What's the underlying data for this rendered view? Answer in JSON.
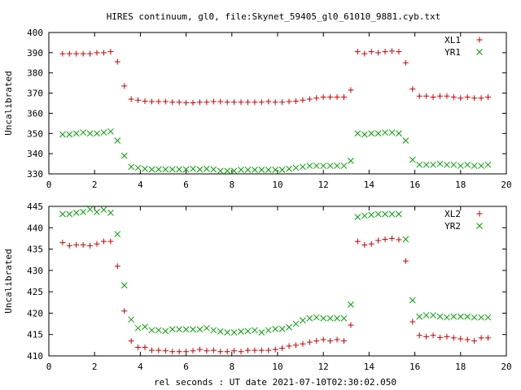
{
  "title": "HIRES continuum, gl0, file:Skynet_59405_gl0_61010_9881.cyb.txt",
  "xlabel": "rel seconds : UT date 2021-07-10T02:30:02.050",
  "colors": {
    "red": "#cc0000",
    "green": "#00a000",
    "axes": "#000000"
  },
  "chart_data": [
    {
      "type": "scatter",
      "ylabel": "Uncalibrated",
      "xlim": [
        0,
        20
      ],
      "ylim": [
        330,
        400
      ],
      "xticks": [
        "0",
        "2",
        "4",
        "6",
        "8",
        "10",
        "12",
        "14",
        "16",
        "18",
        "20"
      ],
      "yticks": [
        "330",
        "340",
        "350",
        "360",
        "370",
        "380",
        "390",
        "400"
      ],
      "legend_position": "top-right",
      "x": [
        0.6,
        0.9,
        1.2,
        1.5,
        1.8,
        2.1,
        2.4,
        2.7,
        3.0,
        3.3,
        3.6,
        3.9,
        4.2,
        4.5,
        4.8,
        5.1,
        5.4,
        5.7,
        6.0,
        6.3,
        6.6,
        6.9,
        7.2,
        7.5,
        7.8,
        8.1,
        8.4,
        8.7,
        9.0,
        9.3,
        9.6,
        9.9,
        10.2,
        10.5,
        10.8,
        11.1,
        11.4,
        11.7,
        12.0,
        12.3,
        12.6,
        12.9,
        13.2,
        13.5,
        13.8,
        14.1,
        14.4,
        14.7,
        15.0,
        15.3,
        15.6,
        15.9,
        16.2,
        16.5,
        16.8,
        17.1,
        17.4,
        17.7,
        18.0,
        18.3,
        18.6,
        18.9,
        19.2
      ],
      "series": [
        {
          "name": "XL1",
          "marker": "plus",
          "color": "#cc0000",
          "values": [
            389.5,
            389.5,
            389.5,
            389.5,
            389.5,
            390,
            390,
            390.5,
            385.5,
            373.5,
            367,
            366.5,
            366,
            365.8,
            365.8,
            365.8,
            365.5,
            365.5,
            365.2,
            365.2,
            365.5,
            365.5,
            365.8,
            365.8,
            365.5,
            365.5,
            365.5,
            365.5,
            365.5,
            365.5,
            365.8,
            365.5,
            365.5,
            365.8,
            366,
            366.5,
            367,
            367.5,
            368,
            368,
            368,
            368,
            371.5,
            390.5,
            389.5,
            390.5,
            390,
            390.5,
            390.8,
            390.5,
            385,
            372,
            368.5,
            368.5,
            368,
            368.5,
            368.5,
            368,
            367.5,
            368,
            367.5,
            367.5,
            368
          ]
        },
        {
          "name": "YR1",
          "marker": "cross",
          "color": "#00a000",
          "values": [
            349.5,
            349.5,
            350,
            350.5,
            350,
            350,
            350.5,
            351,
            346.5,
            339,
            333.5,
            333,
            332.5,
            332.2,
            332.2,
            332.2,
            332.2,
            332.2,
            332.2,
            332.5,
            332.2,
            332.5,
            332.2,
            331.5,
            331.5,
            331.5,
            332,
            332,
            332,
            332,
            332,
            332,
            332,
            332.5,
            333,
            333.5,
            334,
            334,
            334,
            334,
            334,
            334,
            336.5,
            350,
            349.5,
            350,
            350,
            350.5,
            350.5,
            350,
            346.5,
            337,
            334.5,
            334.5,
            334.5,
            335,
            334.5,
            334.5,
            334,
            334.5,
            334,
            334,
            334.5
          ]
        }
      ]
    },
    {
      "type": "scatter",
      "ylabel": "Uncalibrated",
      "xlim": [
        0,
        20
      ],
      "ylim": [
        410,
        445
      ],
      "xticks": [
        "0",
        "2",
        "4",
        "6",
        "8",
        "10",
        "12",
        "14",
        "16",
        "18",
        "20"
      ],
      "yticks": [
        "410",
        "415",
        "420",
        "425",
        "430",
        "435",
        "440",
        "445"
      ],
      "legend_position": "top-right",
      "x": [
        0.6,
        0.9,
        1.2,
        1.5,
        1.8,
        2.1,
        2.4,
        2.7,
        3.0,
        3.3,
        3.6,
        3.9,
        4.2,
        4.5,
        4.8,
        5.1,
        5.4,
        5.7,
        6.0,
        6.3,
        6.6,
        6.9,
        7.2,
        7.5,
        7.8,
        8.1,
        8.4,
        8.7,
        9.0,
        9.3,
        9.6,
        9.9,
        10.2,
        10.5,
        10.8,
        11.1,
        11.4,
        11.7,
        12.0,
        12.3,
        12.6,
        12.9,
        13.2,
        13.5,
        13.8,
        14.1,
        14.4,
        14.7,
        15.0,
        15.3,
        15.6,
        15.9,
        16.2,
        16.5,
        16.8,
        17.1,
        17.4,
        17.7,
        18.0,
        18.3,
        18.6,
        18.9,
        19.2
      ],
      "series": [
        {
          "name": "XL2",
          "marker": "plus",
          "color": "#cc0000",
          "values": [
            436.5,
            435.8,
            436,
            436,
            435.8,
            436.2,
            436.8,
            436.8,
            431,
            420.5,
            413.5,
            412,
            412,
            411.3,
            411.3,
            411.2,
            411,
            411,
            411,
            411.2,
            411.5,
            411.2,
            411.3,
            411,
            411,
            411.2,
            411,
            411.3,
            411.3,
            411.3,
            411.3,
            411.5,
            411.8,
            412.3,
            412.5,
            412.8,
            413.2,
            413.5,
            413.8,
            413.5,
            413.8,
            413.5,
            417.2,
            436.8,
            436,
            436.2,
            437,
            437.3,
            437.5,
            437.2,
            432.2,
            418,
            414.8,
            414.5,
            414.8,
            414.3,
            414.5,
            414.2,
            414,
            413.8,
            413.5,
            414.2,
            414.2
          ]
        },
        {
          "name": "YR2",
          "marker": "cross",
          "color": "#00a000",
          "values": [
            443.2,
            443.2,
            443.5,
            443.7,
            444.3,
            443.7,
            444.2,
            443.5,
            438.5,
            426.5,
            418.5,
            416.5,
            416.8,
            416,
            416,
            415.8,
            416.2,
            416.2,
            416.2,
            416.2,
            416.2,
            416.5,
            416,
            415.7,
            415.5,
            415.5,
            415.7,
            415.8,
            416,
            415.5,
            416,
            416.3,
            416.3,
            416.7,
            417.5,
            418.3,
            418.8,
            419,
            418.8,
            418.8,
            418.8,
            418.8,
            422,
            442.5,
            442.8,
            443,
            443.2,
            443.2,
            443.2,
            443.2,
            437.3,
            423,
            419.2,
            419.5,
            419.5,
            419.2,
            419,
            419.2,
            419.2,
            419.2,
            419,
            419,
            419
          ]
        }
      ]
    }
  ]
}
